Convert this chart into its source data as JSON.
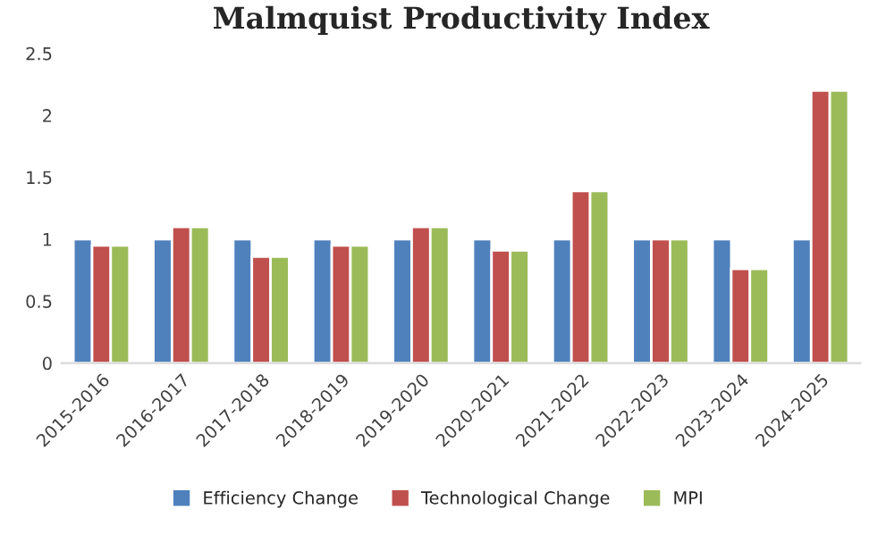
{
  "chart_data": {
    "type": "bar",
    "title": "Malmquist Productivity Index",
    "categories": [
      "2015-2016",
      "2016-2017",
      "2017-2018",
      "2018-2019",
      "2019-2020",
      "2020-2021",
      "2021-2022",
      "2022-2023",
      "2023-2024",
      "2024-2025"
    ],
    "series": [
      {
        "name": "Efficiency Change",
        "color": "#4f81bd",
        "values": [
          1,
          1,
          1,
          1,
          1,
          1,
          1,
          1,
          1,
          1
        ]
      },
      {
        "name": "Technological Change",
        "color": "#c0504d",
        "values": [
          0.95,
          1.1,
          0.86,
          0.95,
          1.1,
          0.91,
          1.39,
          1.0,
          0.76,
          2.2
        ]
      },
      {
        "name": "MPI",
        "color": "#9bbb59",
        "values": [
          0.95,
          1.1,
          0.86,
          0.95,
          1.1,
          0.91,
          1.39,
          1.0,
          0.76,
          2.2
        ]
      }
    ],
    "ylim": [
      0,
      2.5
    ],
    "yticks": [
      0,
      0.5,
      1,
      1.5,
      2,
      2.5
    ],
    "grid": false,
    "legend": "bottom"
  }
}
